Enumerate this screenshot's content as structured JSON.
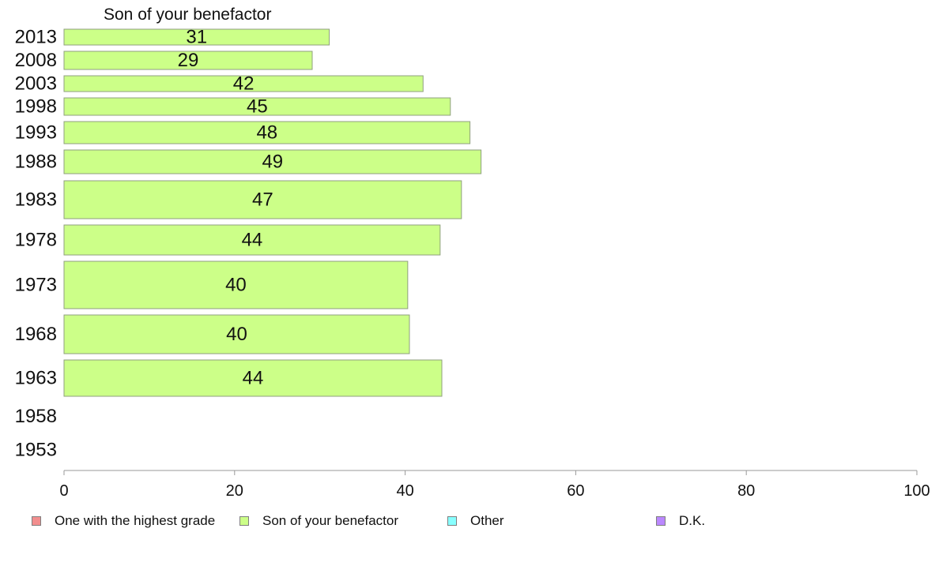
{
  "chart_data": {
    "type": "bar",
    "orientation": "horizontal",
    "title": "Son of your benefactor",
    "categories": [
      "2013",
      "2008",
      "2003",
      "1998",
      "1993",
      "1988",
      "1983",
      "1978",
      "1973",
      "1968",
      "1963",
      "1958",
      "1953"
    ],
    "series": [
      {
        "name": "Son of your benefactor",
        "values": [
          31.1,
          29.1,
          42.1,
          45.3,
          47.6,
          48.9,
          46.6,
          44.1,
          40.3,
          40.5,
          44.3,
          null,
          null
        ],
        "labels": [
          "31",
          "29",
          "42",
          "45",
          "48",
          "49",
          "47",
          "44",
          "40",
          "40",
          "44",
          "",
          ""
        ]
      }
    ],
    "xlim": [
      0,
      100
    ],
    "xticks": [
      "0",
      "20",
      "40",
      "60",
      "80",
      "100"
    ],
    "grid": false,
    "legend": {
      "position": "bottom",
      "entries": [
        {
          "label": "One with the highest grade",
          "color": "#f28e8e"
        },
        {
          "label": "Son of your benefactor",
          "color": "#ccff88"
        },
        {
          "label": "Other",
          "color": "#88ffff"
        },
        {
          "label": "D.K.",
          "color": "#bb88ff"
        }
      ]
    },
    "colors": {
      "bar_fill": "#ccff88",
      "bar_stroke": "#8f9f7f",
      "axis": "#999999",
      "text": "#111111"
    }
  }
}
